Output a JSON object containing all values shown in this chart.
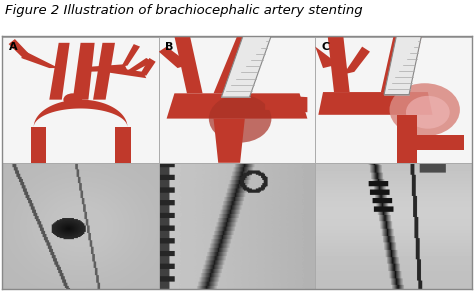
{
  "title": "Figure 2 Illustration of brachiocephalic artery stenting",
  "title_fontsize": 9.5,
  "title_style": "italic",
  "title_color": "#000000",
  "bg_color": "#ffffff",
  "border_color": "#aaaaaa",
  "panel_labels": [
    "A",
    "B",
    "C"
  ],
  "label_fontsize": 8,
  "label_color": "#000000",
  "fig_width": 4.74,
  "fig_height": 2.92,
  "dpi": 100,
  "artery_color": "#c0392b",
  "artery_dark": "#8B1A1A",
  "artery_mid": "#a93226",
  "stent_color": "#e8e8e8",
  "stent_stripe": "#aaaaaa",
  "aneurysm_color": "#d98880",
  "aneurysm_light": "#f0b8b8",
  "illus_bg": "#f5f5f5",
  "xray_bg_A": 0.72,
  "xray_bg_B": 0.78,
  "xray_bg_C": 0.75
}
